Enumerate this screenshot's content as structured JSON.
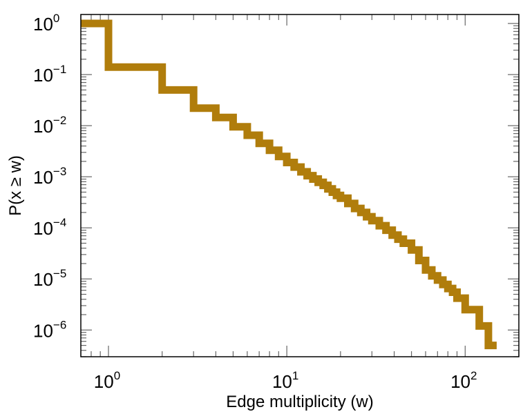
{
  "chart_data": {
    "type": "line",
    "style": "step",
    "xlabel": "Edge multiplicity (w)",
    "ylabel": "P(x ≥ w)",
    "xscale": "log",
    "yscale": "log",
    "xlim": [
      0.7,
      200
    ],
    "ylim": [
      3e-07,
      1.5
    ],
    "grid": false,
    "x_ticks": [
      {
        "base": "10",
        "exp": "0",
        "value": 1
      },
      {
        "base": "10",
        "exp": "1",
        "value": 10
      },
      {
        "base": "10",
        "exp": "2",
        "value": 100
      }
    ],
    "y_ticks": [
      {
        "base": "10",
        "exp": "0",
        "value": 1
      },
      {
        "base": "10",
        "exp": "−1",
        "value": 0.1
      },
      {
        "base": "10",
        "exp": "−2",
        "value": 0.01
      },
      {
        "base": "10",
        "exp": "−3",
        "value": 0.001
      },
      {
        "base": "10",
        "exp": "−4",
        "value": 0.0001
      },
      {
        "base": "10",
        "exp": "−5",
        "value": 1e-05
      },
      {
        "base": "10",
        "exp": "−6",
        "value": 1e-06
      }
    ],
    "series": [
      {
        "color": "#b07d0c",
        "x": [
          0.7,
          1,
          2,
          3,
          4,
          5,
          6,
          7,
          8,
          9,
          10,
          11,
          12,
          13,
          14,
          15,
          16,
          17,
          18,
          19,
          20,
          22,
          24,
          26,
          28,
          30,
          33,
          36,
          39,
          42,
          45,
          50,
          55,
          60,
          65,
          70,
          75,
          80,
          85,
          90,
          100,
          120,
          135
        ],
        "y": [
          1,
          0.14,
          0.05,
          0.022,
          0.0145,
          0.0095,
          0.0065,
          0.0045,
          0.0033,
          0.0025,
          0.0019,
          0.00155,
          0.00125,
          0.00105,
          0.0009,
          0.00078,
          0.00068,
          0.00058,
          0.0005,
          0.00043,
          0.00038,
          0.0003,
          0.00024,
          0.0002,
          0.000165,
          0.000138,
          0.00011,
          9e-05,
          7.2e-05,
          6e-05,
          5e-05,
          3.7e-05,
          2.3e-05,
          1.5e-05,
          1.15e-05,
          9.5e-06,
          7.8e-06,
          6.5e-06,
          5.5e-06,
          4.2e-06,
          2.5e-06,
          1.2e-06,
          5e-07
        ]
      }
    ]
  }
}
